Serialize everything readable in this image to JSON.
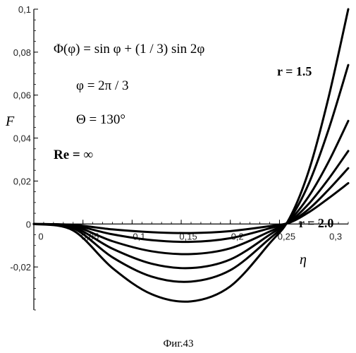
{
  "chart_data": {
    "type": "line",
    "xlabel": "η",
    "ylabel": "F",
    "xlim": [
      0,
      0.32
    ],
    "ylim": [
      -0.04,
      0.1
    ],
    "x_ticks": [
      {
        "value": 0,
        "label": "0"
      },
      {
        "value": 0.05,
        "label": "0,05"
      },
      {
        "value": 0.1,
        "label": "0,1"
      },
      {
        "value": 0.15,
        "label": "0,15"
      },
      {
        "value": 0.2,
        "label": "0,2"
      },
      {
        "value": 0.25,
        "label": "0,25"
      },
      {
        "value": 0.3,
        "label": "0,3"
      }
    ],
    "y_ticks": [
      {
        "value": 0.1,
        "label": "0,1"
      },
      {
        "value": 0.08,
        "label": "0,08"
      },
      {
        "value": 0.06,
        "label": "0,06"
      },
      {
        "value": 0.04,
        "label": "0,04"
      },
      {
        "value": 0.02,
        "label": "0,02"
      },
      {
        "value": 0,
        "label": "0"
      },
      {
        "value": -0.02,
        "label": "-0,02"
      }
    ],
    "annotations": {
      "formula1": "Φ(φ) = sin φ + (1 / 3) sin 2φ",
      "formula2": "φ = 2π / 3",
      "formula3": "Θ = 130°",
      "formula4": "Re = ∞",
      "label_top": "r = 1.5",
      "label_bottom": "r = 2.0"
    },
    "caption": "Фиг.43",
    "series": [
      {
        "x": [
          0,
          0.04,
          0.08,
          0.12,
          0.16,
          0.2,
          0.24,
          0.26,
          0.28,
          0.3,
          0.32
        ],
        "y": [
          0,
          -0.003,
          -0.0205,
          -0.0327,
          -0.036,
          -0.029,
          -0.009,
          0.0025,
          0.025,
          0.059,
          0.1
        ]
      },
      {
        "x": [
          0,
          0.04,
          0.08,
          0.12,
          0.16,
          0.2,
          0.24,
          0.26,
          0.28,
          0.3,
          0.32
        ],
        "y": [
          0,
          -0.002,
          -0.0155,
          -0.0245,
          -0.0268,
          -0.0215,
          -0.0068,
          0.002,
          0.019,
          0.044,
          0.074
        ]
      },
      {
        "x": [
          0,
          0.04,
          0.08,
          0.12,
          0.16,
          0.2,
          0.24,
          0.26,
          0.28,
          0.3,
          0.32
        ],
        "y": [
          0,
          -0.0015,
          -0.0115,
          -0.0185,
          -0.0205,
          -0.0165,
          -0.005,
          0.0015,
          0.013,
          0.029,
          0.048
        ]
      },
      {
        "x": [
          0,
          0.04,
          0.08,
          0.12,
          0.16,
          0.2,
          0.24,
          0.26,
          0.28,
          0.3,
          0.32
        ],
        "y": [
          0,
          -0.001,
          -0.008,
          -0.0127,
          -0.014,
          -0.0113,
          -0.0035,
          0.001,
          0.0095,
          0.021,
          0.034
        ]
      },
      {
        "x": [
          0,
          0.04,
          0.08,
          0.12,
          0.16,
          0.2,
          0.24,
          0.26,
          0.28,
          0.3,
          0.32
        ],
        "y": [
          0,
          -0.0007,
          -0.0048,
          -0.0075,
          -0.0083,
          -0.0066,
          -0.002,
          0.0008,
          0.007,
          0.016,
          0.026
        ]
      },
      {
        "x": [
          0,
          0.04,
          0.08,
          0.12,
          0.16,
          0.2,
          0.24,
          0.26,
          0.28,
          0.3,
          0.32
        ],
        "y": [
          0,
          -0.0004,
          -0.0025,
          -0.0038,
          -0.0042,
          -0.0033,
          -0.001,
          0.0006,
          0.0055,
          0.012,
          0.019
        ]
      }
    ]
  }
}
